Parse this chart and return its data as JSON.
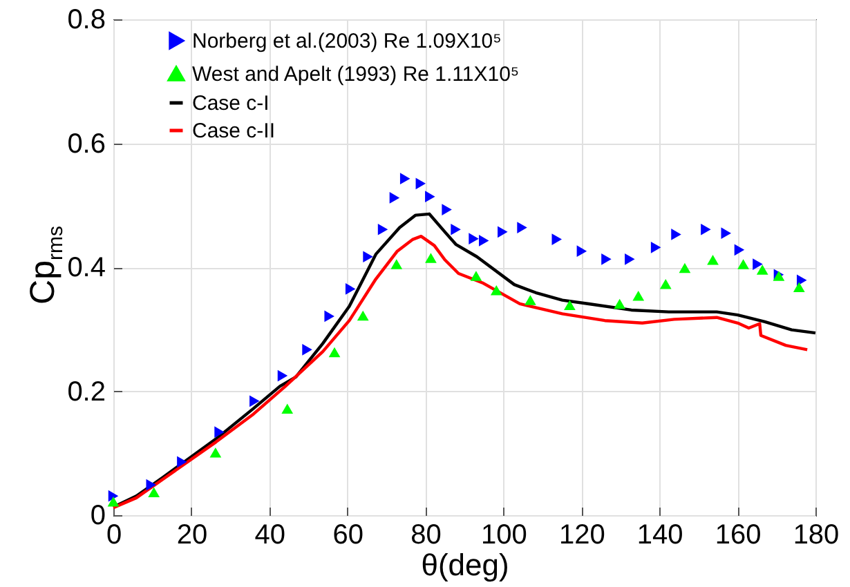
{
  "chart_data": {
    "type": "line",
    "xlabel": "θ(deg)",
    "ylabel": "Cp$_{rms}$",
    "xlim": [
      0,
      180
    ],
    "ylim": [
      0,
      0.8
    ],
    "xticks": [
      0,
      20,
      40,
      60,
      80,
      100,
      120,
      140,
      160,
      180
    ],
    "yticks": [
      0,
      0.2,
      0.4,
      0.6,
      0.8
    ],
    "grid": true,
    "legend": "top left",
    "series": [
      {
        "name": "Norberg et al.(2003) Re 1.09X10⁵",
        "type": "scatter",
        "marker": "triangle-right",
        "color": "#0000ff",
        "x": [
          0,
          9.7,
          17.6,
          27.2,
          36.2,
          43.4,
          49.7,
          55.4,
          60.8,
          65.3,
          69.1,
          72.1,
          74.8,
          78.8,
          81.2,
          85.5,
          87.8,
          92.4,
          95.0,
          99.8,
          104.8,
          113.7,
          120.1,
          126.4,
          132.4,
          139.1,
          144.3,
          151.9,
          157.1,
          160.5,
          165.2,
          170.6,
          176.5
        ],
        "values": [
          0.031,
          0.049,
          0.086,
          0.134,
          0.184,
          0.225,
          0.267,
          0.321,
          0.365,
          0.417,
          0.461,
          0.512,
          0.543,
          0.535,
          0.514,
          0.493,
          0.461,
          0.446,
          0.443,
          0.457,
          0.464,
          0.445,
          0.426,
          0.413,
          0.413,
          0.432,
          0.453,
          0.461,
          0.455,
          0.428,
          0.405,
          0.388,
          0.379
        ]
      },
      {
        "name": "West and Apelt (1993)      Re 1.11X10⁵",
        "type": "scatter",
        "marker": "triangle",
        "color": "#00ff00",
        "x": [
          0,
          10.4,
          26.2,
          44.6,
          56.7,
          64.0,
          72.6,
          81.4,
          93.0,
          98.2,
          106.9,
          117.0,
          129.8,
          134.6,
          141.6,
          146.5,
          153.7,
          161.5,
          166.4,
          170.6,
          175.8
        ],
        "values": [
          0.022,
          0.037,
          0.101,
          0.172,
          0.263,
          0.322,
          0.405,
          0.415,
          0.386,
          0.363,
          0.347,
          0.339,
          0.341,
          0.354,
          0.373,
          0.399,
          0.412,
          0.405,
          0.396,
          0.386,
          0.368
        ]
      },
      {
        "name": "Case c-I",
        "color": "#000000",
        "x": [
          0,
          5.9,
          12.7,
          26.3,
          35.9,
          42.7,
          46.8,
          53.7,
          60.5,
          67.3,
          73.4,
          77.5,
          81,
          85,
          87.8,
          93.2,
          102.8,
          108.3,
          115.1,
          121.9,
          132.8,
          142.4,
          154.7,
          160.1,
          167,
          173.9,
          180
        ],
        "values": [
          0.013,
          0.031,
          0.061,
          0.123,
          0.172,
          0.208,
          0.223,
          0.277,
          0.337,
          0.421,
          0.464,
          0.484,
          0.486,
          0.457,
          0.437,
          0.417,
          0.372,
          0.359,
          0.347,
          0.341,
          0.331,
          0.328,
          0.328,
          0.323,
          0.312,
          0.299,
          0.294
        ]
      },
      {
        "name": "Case c-II",
        "color": "#ff0000",
        "x": [
          0,
          5.9,
          12.7,
          26.3,
          35.9,
          44.1,
          53.7,
          60.5,
          67.3,
          72.8,
          76.8,
          78.9,
          82.3,
          85,
          88.5,
          94.6,
          104.2,
          115.1,
          126,
          135.6,
          143.8,
          154.7,
          160.1,
          162.9,
          165.7,
          166,
          172.4,
          177.9
        ],
        "values": [
          0.012,
          0.028,
          0.058,
          0.118,
          0.163,
          0.208,
          0.264,
          0.314,
          0.381,
          0.426,
          0.445,
          0.45,
          0.435,
          0.412,
          0.39,
          0.375,
          0.341,
          0.325,
          0.314,
          0.31,
          0.316,
          0.319,
          0.31,
          0.302,
          0.309,
          0.29,
          0.274,
          0.267
        ]
      }
    ]
  }
}
